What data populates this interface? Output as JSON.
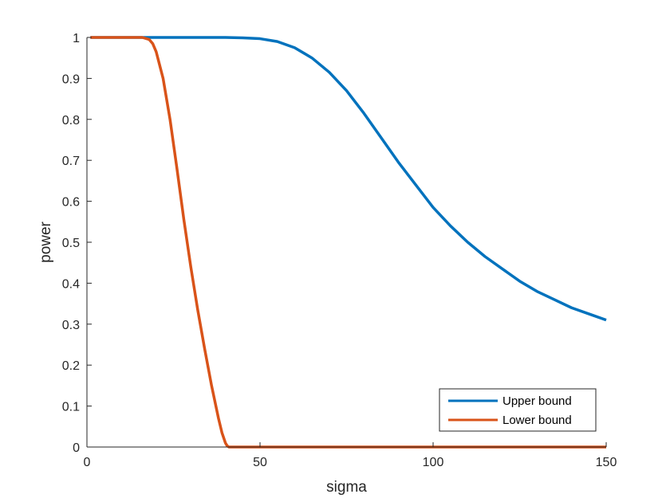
{
  "chart_data": {
    "type": "line",
    "title": "",
    "xlabel": "sigma",
    "ylabel": "power",
    "xlim": [
      0,
      150
    ],
    "ylim": [
      0,
      1
    ],
    "xticks": [
      0,
      50,
      100,
      150
    ],
    "xtick_labels": [
      "0",
      "50",
      "100",
      "150"
    ],
    "yticks": [
      0,
      0.1,
      0.2,
      0.3,
      0.4,
      0.5,
      0.6,
      0.7,
      0.8,
      0.9,
      1
    ],
    "ytick_labels": [
      "0",
      "0.1",
      "0.2",
      "0.3",
      "0.4",
      "0.5",
      "0.6",
      "0.7",
      "0.8",
      "0.9",
      "1"
    ],
    "grid": false,
    "legend_position": "bottom-right",
    "series": [
      {
        "name": "Upper bound",
        "color": "#0072BD",
        "x": [
          1,
          10,
          20,
          30,
          40,
          45,
          50,
          55,
          60,
          65,
          70,
          75,
          80,
          85,
          90,
          95,
          100,
          105,
          110,
          115,
          120,
          125,
          130,
          135,
          140,
          145,
          150
        ],
        "y": [
          1.0,
          1.0,
          1.0,
          1.0,
          1.0,
          0.999,
          0.997,
          0.99,
          0.975,
          0.95,
          0.915,
          0.87,
          0.815,
          0.755,
          0.695,
          0.64,
          0.585,
          0.54,
          0.5,
          0.465,
          0.435,
          0.405,
          0.38,
          0.36,
          0.34,
          0.325,
          0.31
        ]
      },
      {
        "name": "Lower bound",
        "color": "#D95319",
        "x": [
          1,
          10,
          16,
          18,
          19,
          20,
          22,
          24,
          26,
          28,
          30,
          32,
          34,
          36,
          38,
          39,
          40,
          40.5,
          41,
          45,
          60,
          80,
          100,
          120,
          150
        ],
        "y": [
          1.0,
          1.0,
          1.0,
          0.995,
          0.985,
          0.965,
          0.9,
          0.8,
          0.68,
          0.555,
          0.44,
          0.335,
          0.24,
          0.15,
          0.07,
          0.035,
          0.01,
          0.003,
          0.0,
          0.0,
          0.0,
          0.0,
          0.0,
          0.0,
          0.0
        ]
      }
    ]
  }
}
